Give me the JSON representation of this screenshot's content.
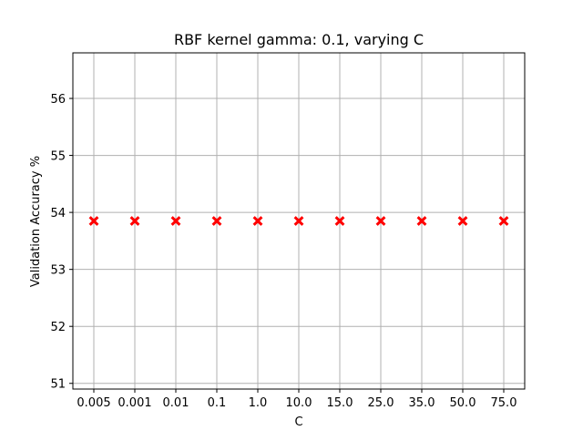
{
  "chart_data": {
    "type": "scatter",
    "title": "RBF kernel gamma: 0.1, varying C",
    "xlabel": "C",
    "ylabel": "Validation Accuracy %",
    "categories": [
      "0.005",
      "0.001",
      "0.01",
      "0.1",
      "1.0",
      "10.0",
      "15.0",
      "25.0",
      "35.0",
      "50.0",
      "75.0"
    ],
    "series": [
      {
        "values": [
          53.85,
          53.85,
          53.85,
          53.85,
          53.85,
          53.85,
          53.85,
          53.85,
          53.85,
          53.85,
          53.85
        ],
        "color": "#ff0000",
        "marker": "X"
      }
    ],
    "ylim": [
      50.9,
      56.8
    ],
    "yticks": [
      51,
      52,
      53,
      54,
      55,
      56
    ],
    "grid": true,
    "colors": {
      "grid": "#b0b0b0",
      "axes": "#000000",
      "marker": "#ff0000"
    }
  }
}
